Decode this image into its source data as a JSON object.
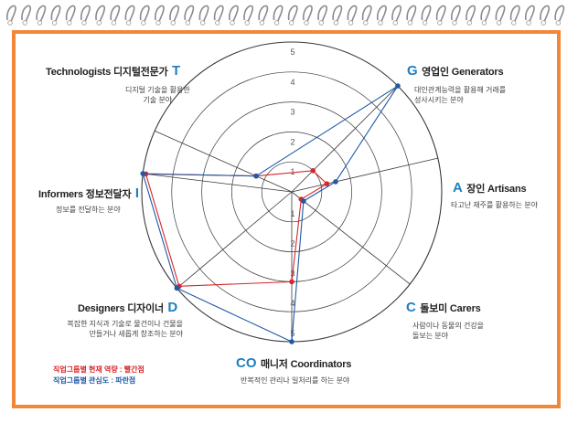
{
  "chart_data": {
    "type": "radar",
    "r_range": [
      0,
      5
    ],
    "r_ticks": [
      "1",
      "2",
      "3",
      "4",
      "5"
    ],
    "axes": [
      {
        "letter": "T",
        "name": "Technologists 디지털전문가",
        "desc": [
          "디지털 기술을 활용한",
          "기술 분야"
        ]
      },
      {
        "letter": "G",
        "name": "영업인 Generators",
        "desc": [
          "대인관계능력을 활용해 거래를",
          "성사시키는 분야"
        ]
      },
      {
        "letter": "A",
        "name": "장인 Artisans",
        "desc": [
          "타고난 재주를 활용하는 분야"
        ]
      },
      {
        "letter": "C",
        "name": "돌보미 Carers",
        "desc": [
          "사람이나 동물의 건강을",
          "돌보는 분야"
        ]
      },
      {
        "letter": "CO",
        "name": "매니저 Coordinators",
        "desc": [
          "반복적인 관리나 일처리를 하는 분야"
        ]
      },
      {
        "letter": "D",
        "name": "Designers 디자이너",
        "desc": [
          "복잡한 지식과 기술로 물건이나 건물을",
          "만들거나 새롭게 창조하는 분야"
        ]
      },
      {
        "letter": "I",
        "name": "Informers 정보전달자",
        "desc": [
          "정보를 전달하는 분야"
        ]
      }
    ],
    "series": [
      {
        "name": "직업그룹별 현재 역량 : 빨간점",
        "color": "#d9262b",
        "values": [
          1.3,
          1.0,
          1.2,
          0.4,
          3.0,
          4.9,
          4.9
        ]
      },
      {
        "name": "직업그룹별 관심도 : 파란점",
        "color": "#1f5aa6",
        "values": [
          1.3,
          5.0,
          1.5,
          0.5,
          5.0,
          5.0,
          5.0
        ]
      }
    ]
  }
}
